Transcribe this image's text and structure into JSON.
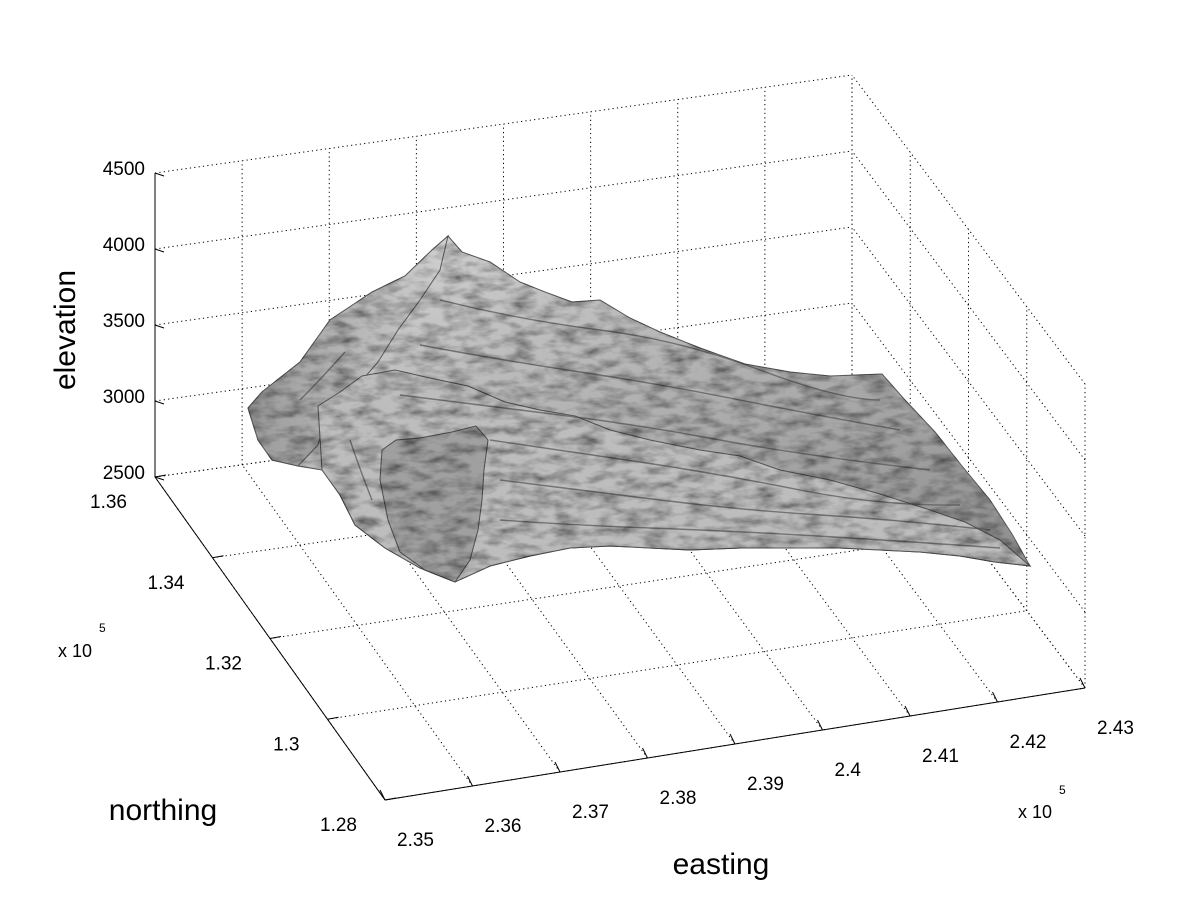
{
  "chart_data": {
    "type": "surface",
    "xlabel": "easting",
    "ylabel": "northing",
    "zlabel": "elevation",
    "x_ticks": [
      "2.35",
      "2.36",
      "2.37",
      "2.38",
      "2.39",
      "2.4",
      "2.41",
      "2.42",
      "2.43"
    ],
    "y_ticks": [
      "1.28",
      "1.3",
      "1.32",
      "1.34",
      "1.36"
    ],
    "z_ticks": [
      "2500",
      "3000",
      "3500",
      "4000",
      "4500"
    ],
    "x_multiplier": "x 10",
    "x_multiplier_exp": "5",
    "y_multiplier": "x 10",
    "y_multiplier_exp": "5",
    "xlim": [
      235000,
      243000
    ],
    "ylim": [
      128000,
      136000
    ],
    "zlim": [
      2500,
      4500
    ],
    "grid": true,
    "surface_color": "#a8a8a8",
    "description_values": {
      "peak_elevation": 3980,
      "peak_easting": 236200,
      "peak_northing": 133000
    }
  }
}
